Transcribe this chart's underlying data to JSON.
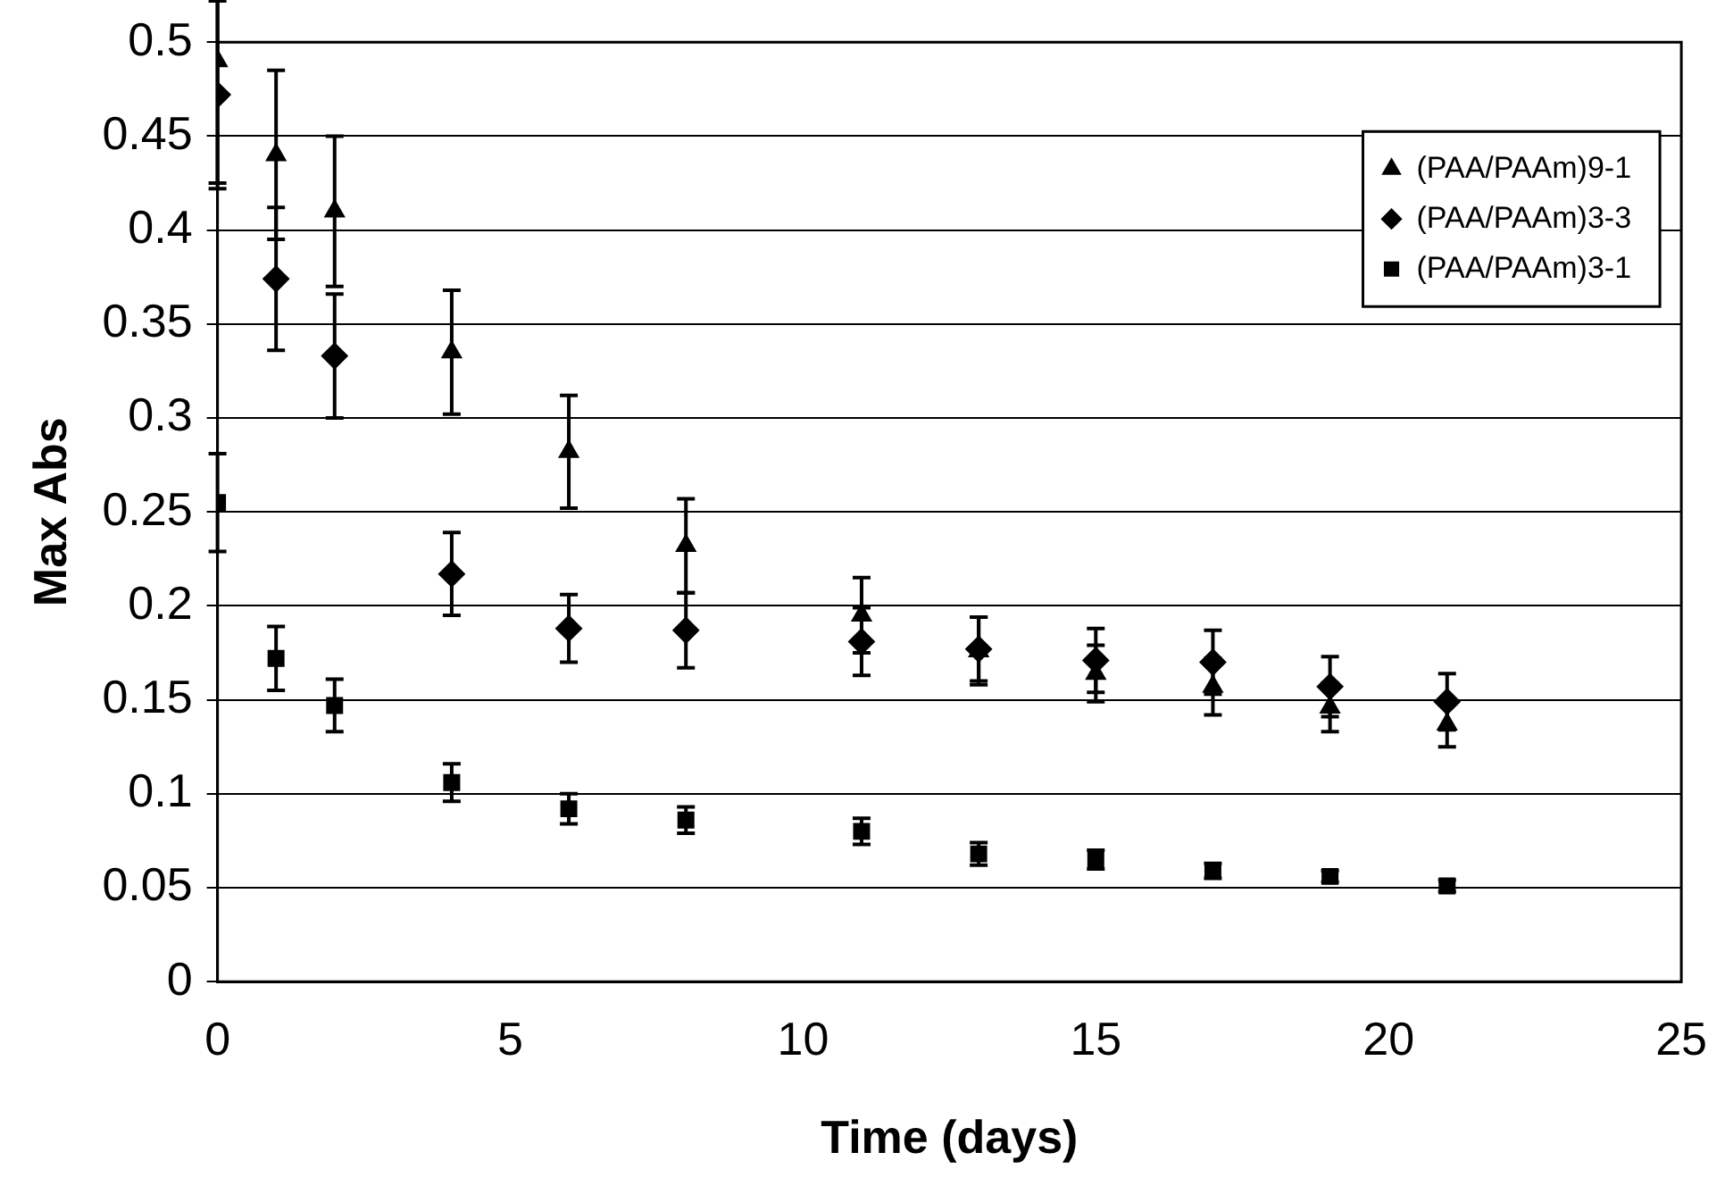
{
  "chart_data": {
    "type": "scatter",
    "xlabel": "Time (days)",
    "ylabel": "Max Abs",
    "x": [
      0,
      1,
      2,
      4,
      6,
      8,
      11,
      13,
      15,
      17,
      19,
      21
    ],
    "xlim": [
      0,
      25
    ],
    "xticks": [
      0,
      5,
      10,
      15,
      20,
      25
    ],
    "ylim": [
      0,
      0.5
    ],
    "yticks": [
      0,
      0.05,
      0.1,
      0.15,
      0.2,
      0.25,
      0.3,
      0.35,
      0.4,
      0.45,
      0.5
    ],
    "grid": "y",
    "legend": "top right",
    "series": [
      {
        "name": "(PAA/PAAm)9-1",
        "color": "#000000",
        "marker": "triangle",
        "values": [
          0.49,
          0.44,
          0.41,
          0.335,
          0.282,
          0.232,
          0.195,
          0.176,
          0.164,
          0.157,
          0.146,
          0.137
        ],
        "errors": [
          0.065,
          0.045,
          0.04,
          0.033,
          0.03,
          0.025,
          0.02,
          0.018,
          0.015,
          0.015,
          0.013,
          0.012
        ]
      },
      {
        "name": "(PAA/PAAm)3-3",
        "color": "#000000",
        "marker": "diamond",
        "values": [
          0.472,
          0.374,
          0.333,
          0.217,
          0.188,
          0.187,
          0.181,
          0.177,
          0.171,
          0.17,
          0.157,
          0.149
        ],
        "errors": [
          0.05,
          0.038,
          0.033,
          0.022,
          0.018,
          0.02,
          0.018,
          0.017,
          0.017,
          0.017,
          0.016,
          0.015
        ]
      },
      {
        "name": "(PAA/PAAm)3-1",
        "color": "#000000",
        "marker": "square",
        "values": [
          0.255,
          0.172,
          0.147,
          0.106,
          0.092,
          0.086,
          0.08,
          0.068,
          0.065,
          0.059,
          0.056,
          0.051
        ],
        "errors": [
          0.026,
          0.017,
          0.014,
          0.01,
          0.008,
          0.007,
          0.007,
          0.006,
          0.005,
          0.004,
          0.003,
          0.003
        ]
      }
    ]
  }
}
